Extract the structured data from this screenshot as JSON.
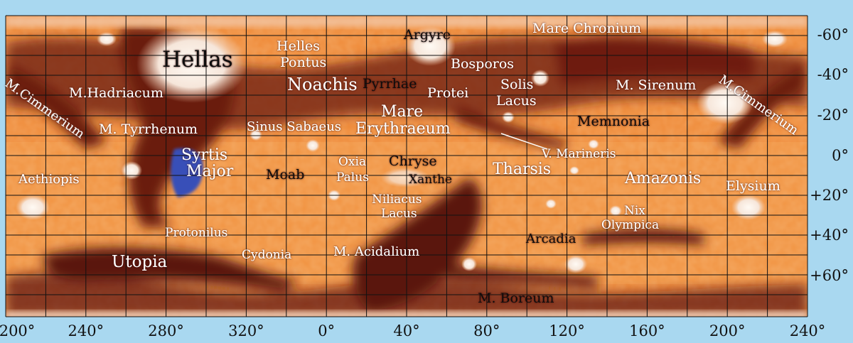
{
  "map": {
    "lon_ticks": [
      "200°",
      "240°",
      "280°",
      "320°",
      "0°",
      "40°",
      "80°",
      "120°",
      "160°",
      "200°",
      "240°"
    ],
    "lat_ticks": [
      "-60°",
      "-40°",
      "-20°",
      "0°",
      "+20°",
      "+40°",
      "+60°"
    ],
    "labels": {
      "argyre": "Argyre",
      "mare_chronium": "Mare Chronium",
      "hellas": "Hellas",
      "helles_pontus_1": "Helles",
      "helles_pontus_2": "Pontus",
      "noachis": "Noachis",
      "pyrrhae": "Pyrrhae",
      "bosporos": "Bosporos",
      "protei": "Protei",
      "solis_lacus_1": "Solis",
      "solis_lacus_2": "Lacus",
      "m_sirenum": "M. Sirenum",
      "m_cimmerium_left": "M.Cimmerium",
      "m_cimmerium_right": "M.Cimmerium",
      "m_hadriacum": "M.Hadriacum",
      "mare_erythraeum_1": "Mare",
      "mare_erythraeum_2": "Erythraeum",
      "memnonia": "Memnonia",
      "m_tyrrhenum": "M. Tyrrhenum",
      "sinus_sabaeus": "Sinus Sabaeus",
      "syrtis_major_1": "Syrtis",
      "syrtis_major_2": "Major",
      "v_marineris": "V. Marineris",
      "oxia_palus_1": "Oxia",
      "oxia_palus_2": "Palus",
      "chryse": "Chryse",
      "xanthe": "Xanthe",
      "tharsis": "Tharsis",
      "moab": "Moab",
      "aethiopis": "Aethiopis",
      "amazonis": "Amazonis",
      "elysium": "Elysium",
      "niliacus_lacus_1": "Niliacus",
      "niliacus_lacus_2": "Lacus",
      "nix_olympica_1": "Nix",
      "nix_olympica_2": "Olympica",
      "protonilus": "Protonilus",
      "arcadia": "Arcadia",
      "utopia": "Utopia",
      "cydonia": "Cydonia",
      "m_acidalium": "M. Acidalium",
      "m_boreum": "M. Boreum"
    },
    "colors": {
      "background": "#a9d8f0",
      "bright_region": "#ef8a38",
      "dark_region": "#5a140c",
      "polar_ice": "#f6eee4",
      "grid": "#111111",
      "label_light": "#ffffff",
      "label_dark": "#111111",
      "syrtis_blue": "#3850b8"
    }
  }
}
